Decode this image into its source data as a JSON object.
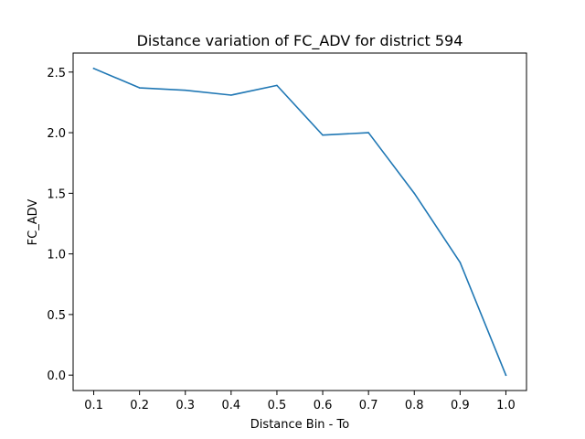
{
  "chart_data": {
    "type": "line",
    "title": "Distance variation of FC_ADV for district 594",
    "xlabel": "Distance Bin - To",
    "ylabel": "FC_ADV",
    "x": [
      0.1,
      0.2,
      0.3,
      0.4,
      0.5,
      0.6,
      0.7,
      0.8,
      0.9,
      1.0
    ],
    "series": [
      {
        "values": [
          2.53,
          2.37,
          2.35,
          2.31,
          2.39,
          1.98,
          2.0,
          1.5,
          0.93,
          0.0
        ],
        "color": "#1f77b4"
      }
    ],
    "xlim": [
      0.055,
      1.045
    ],
    "ylim": [
      -0.127,
      2.657
    ],
    "xticks": [
      0.1,
      0.2,
      0.3,
      0.4,
      0.5,
      0.6,
      0.7,
      0.8,
      0.9,
      1.0
    ],
    "xtick_labels": [
      "0.1",
      "0.2",
      "0.3",
      "0.4",
      "0.5",
      "0.6",
      "0.7",
      "0.8",
      "0.9",
      "1.0"
    ],
    "yticks": [
      0.0,
      0.5,
      1.0,
      1.5,
      2.0,
      2.5
    ],
    "ytick_labels": [
      "0.0",
      "0.5",
      "1.0",
      "1.5",
      "2.0",
      "2.5"
    ],
    "grid": false,
    "legend": "none"
  }
}
